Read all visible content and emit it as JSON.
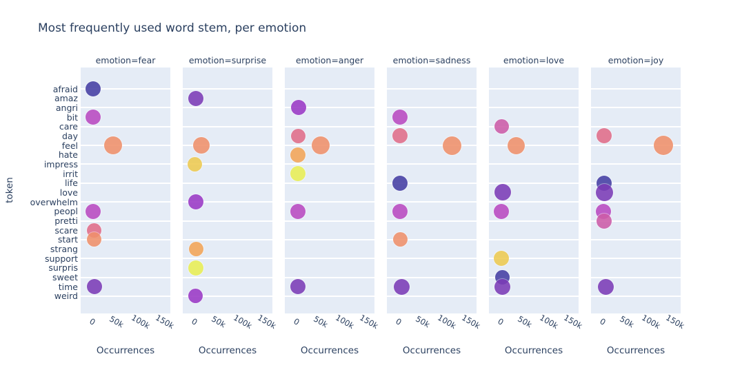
{
  "title": "Most frequently used word stem, per emotion",
  "colors": {
    "text": "#2a3f5f",
    "panel_bg": "#e5ecf6",
    "grid": "#ffffff",
    "page_bg": "#ffffff"
  },
  "chart_data": {
    "type": "scatter",
    "title": "Most frequently used word stem, per emotion",
    "xlabel": "Occurrences",
    "ylabel": "token",
    "xlim": [
      -24000,
      161000
    ],
    "x_ticks": [
      {
        "value": 0,
        "label": "0"
      },
      {
        "value": 50000,
        "label": "50k"
      },
      {
        "value": 100000,
        "label": "100k"
      },
      {
        "value": 150000,
        "label": "150k"
      }
    ],
    "grid": "horizontal gridlines on every other token row, no vertical gridlines",
    "legend": "none",
    "marker_opacity": 0.88,
    "tokens": [
      {
        "label": "afraid",
        "color": "#453ea3"
      },
      {
        "label": "amaz",
        "color": "#7c3cb7"
      },
      {
        "label": "angri",
        "color": "#9a39c6"
      },
      {
        "label": "bit",
        "color": "#b94ac1"
      },
      {
        "label": "care",
        "color": "#cd5ca8"
      },
      {
        "label": "day",
        "color": "#e16d89"
      },
      {
        "label": "feel",
        "color": "#f0906b"
      },
      {
        "label": "hate",
        "color": "#f3a557"
      },
      {
        "label": "impress",
        "color": "#eeca50"
      },
      {
        "label": "irrit",
        "color": "#e9ef55"
      },
      {
        "label": "life",
        "color": "#453ea3"
      },
      {
        "label": "love",
        "color": "#7c3cb7"
      },
      {
        "label": "overwhelm",
        "color": "#9a39c6"
      },
      {
        "label": "peopl",
        "color": "#b94ac1"
      },
      {
        "label": "pretti",
        "color": "#cd5ca8"
      },
      {
        "label": "scare",
        "color": "#e16d89"
      },
      {
        "label": "start",
        "color": "#f0906b"
      },
      {
        "label": "strang",
        "color": "#f3a557"
      },
      {
        "label": "support",
        "color": "#eeca50"
      },
      {
        "label": "surpris",
        "color": "#e9ef55"
      },
      {
        "label": "sweet",
        "color": "#453ea3"
      },
      {
        "label": "time",
        "color": "#7c3cb7"
      },
      {
        "label": "weird",
        "color": "#9a39c6"
      }
    ],
    "facets": [
      {
        "emotion": "fear",
        "header": "emotion=fear",
        "points": [
          {
            "token": "afraid",
            "occurrences": 2000,
            "r": 11
          },
          {
            "token": "bit",
            "occurrences": 2000,
            "r": 11
          },
          {
            "token": "feel",
            "occurrences": 43000,
            "r": 13
          },
          {
            "token": "peopl",
            "occurrences": 2000,
            "r": 11
          },
          {
            "token": "scare",
            "occurrences": 4000,
            "r": 10.5
          },
          {
            "token": "start",
            "occurrences": 4000,
            "r": 10.5
          },
          {
            "token": "time",
            "occurrences": 4000,
            "r": 11
          }
        ]
      },
      {
        "emotion": "surprise",
        "header": "emotion=surprise",
        "points": [
          {
            "token": "amaz",
            "occurrences": 3000,
            "r": 11
          },
          {
            "token": "feel",
            "occurrences": 14000,
            "r": 12
          },
          {
            "token": "impress",
            "occurrences": 1000,
            "r": 10.5
          },
          {
            "token": "overwhelm",
            "occurrences": 3000,
            "r": 11
          },
          {
            "token": "strang",
            "occurrences": 3000,
            "r": 10.5
          },
          {
            "token": "surpris",
            "occurrences": 3000,
            "r": 11
          },
          {
            "token": "weird",
            "occurrences": 2000,
            "r": 10.5
          }
        ]
      },
      {
        "emotion": "anger",
        "header": "emotion=anger",
        "points": [
          {
            "token": "angri",
            "occurrences": 4000,
            "r": 11
          },
          {
            "token": "day",
            "occurrences": 3000,
            "r": 10.5
          },
          {
            "token": "feel",
            "occurrences": 50000,
            "r": 13
          },
          {
            "token": "hate",
            "occurrences": 3000,
            "r": 11
          },
          {
            "token": "irrit",
            "occurrences": 3000,
            "r": 11
          },
          {
            "token": "peopl",
            "occurrences": 3000,
            "r": 11
          },
          {
            "token": "time",
            "occurrences": 3000,
            "r": 11
          }
        ]
      },
      {
        "emotion": "sadness",
        "header": "emotion=sadness",
        "points": [
          {
            "token": "bit",
            "occurrences": 3000,
            "r": 11
          },
          {
            "token": "day",
            "occurrences": 3000,
            "r": 11
          },
          {
            "token": "feel",
            "occurrences": 110000,
            "r": 13.5
          },
          {
            "token": "life",
            "occurrences": 3000,
            "r": 11
          },
          {
            "token": "peopl",
            "occurrences": 3000,
            "r": 11
          },
          {
            "token": "start",
            "occurrences": 3000,
            "r": 10.5
          },
          {
            "token": "time",
            "occurrences": 6000,
            "r": 11.5
          }
        ]
      },
      {
        "emotion": "love",
        "header": "emotion=love",
        "points": [
          {
            "token": "care",
            "occurrences": 2000,
            "r": 10.5
          },
          {
            "token": "feel",
            "occurrences": 32000,
            "r": 12.5
          },
          {
            "token": "love",
            "occurrences": 4000,
            "r": 12
          },
          {
            "token": "peopl",
            "occurrences": 2000,
            "r": 11
          },
          {
            "token": "support",
            "occurrences": 2000,
            "r": 11
          },
          {
            "token": "sweet",
            "occurrences": 3000,
            "r": 10.5
          },
          {
            "token": "time",
            "occurrences": 4000,
            "r": 11.5
          }
        ]
      },
      {
        "emotion": "joy",
        "header": "emotion=joy",
        "points": [
          {
            "token": "day",
            "occurrences": 3000,
            "r": 11
          },
          {
            "token": "feel",
            "occurrences": 125000,
            "r": 14
          },
          {
            "token": "life",
            "occurrences": 3000,
            "r": 11
          },
          {
            "token": "love",
            "occurrences": 4000,
            "r": 12.5
          },
          {
            "token": "peopl",
            "occurrences": 1000,
            "r": 11
          },
          {
            "token": "pretti",
            "occurrences": 3000,
            "r": 11
          },
          {
            "token": "time",
            "occurrences": 6000,
            "r": 11.5
          }
        ]
      }
    ]
  }
}
